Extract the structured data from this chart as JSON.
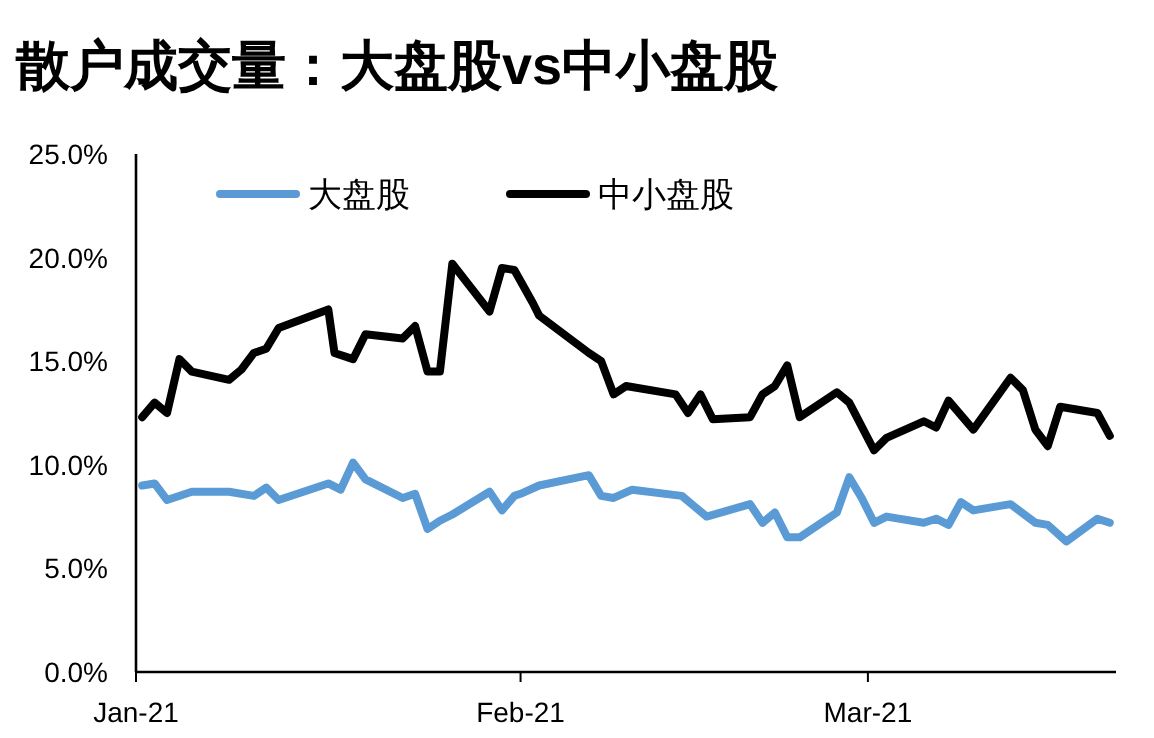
{
  "chart_data": {
    "type": "line",
    "title": "散户成交量：大盘股vs中小盘股",
    "xlim": [
      "2021-01-01",
      "2021-03-21"
    ],
    "xticks": [
      {
        "value": "2021-01-01",
        "label": "Jan-21"
      },
      {
        "value": "2021-02-01",
        "label": "Feb-21"
      },
      {
        "value": "2021-03-01",
        "label": "Mar-21"
      }
    ],
    "ylim": [
      0,
      25
    ],
    "yticks": [
      {
        "value": 0,
        "label": "0.0%"
      },
      {
        "value": 5,
        "label": "5.0%"
      },
      {
        "value": 10,
        "label": "10.0%"
      },
      {
        "value": 15,
        "label": "15.0%"
      },
      {
        "value": 20,
        "label": "20.0%"
      },
      {
        "value": 25,
        "label": "25.0%"
      }
    ],
    "grid": false,
    "legend": "top",
    "marker": "none",
    "line_style": "solid",
    "series": [
      {
        "name": "大盘股",
        "color": "#5b9bd5",
        "x": [
          "2021-01-01T12:00",
          "2021-01-02T12:00",
          "2021-01-03T12:00",
          "2021-01-05T12:00",
          "2021-01-08T12:00",
          "2021-01-10T12:00",
          "2021-01-11T12:00",
          "2021-01-12T12:00",
          "2021-01-16T12:00",
          "2021-01-17T12:00",
          "2021-01-18T12:00",
          "2021-01-19T12:00",
          "2021-01-22T12:00",
          "2021-01-23T12:00",
          "2021-01-24T12:00",
          "2021-01-25T12:00",
          "2021-01-26T12:00",
          "2021-01-29T12:00",
          "2021-01-30T12:00",
          "2021-01-31T12:00",
          "2021-02-01T00:00",
          "2021-02-02T12:00",
          "2021-02-06T12:00",
          "2021-02-07T12:00",
          "2021-02-08T12:00",
          "2021-02-10T00:00",
          "2021-02-14T00:00",
          "2021-02-15T00:00",
          "2021-02-16T00:00",
          "2021-02-19T12:00",
          "2021-02-20T12:00",
          "2021-02-21T12:00",
          "2021-02-22T12:00",
          "2021-02-23T12:00",
          "2021-02-26T12:00",
          "2021-02-27T12:00",
          "2021-02-28T12:00",
          "2021-03-01T12:00",
          "2021-03-02T12:00",
          "2021-03-05T12:00",
          "2021-03-06T12:00",
          "2021-03-07T12:00",
          "2021-03-08T12:00",
          "2021-03-09T12:00",
          "2021-03-12T12:00",
          "2021-03-14T12:00",
          "2021-03-15T12:00",
          "2021-03-17T00:00",
          "2021-03-19T12:00",
          "2021-03-20T12:00"
        ],
        "values": [
          9.0,
          9.1,
          8.3,
          8.7,
          8.7,
          8.5,
          8.9,
          8.3,
          9.1,
          8.8,
          10.1,
          9.3,
          8.4,
          8.6,
          6.9,
          7.3,
          7.6,
          8.7,
          7.8,
          8.5,
          8.6,
          9.0,
          9.5,
          8.5,
          8.4,
          8.8,
          8.5,
          8.0,
          7.5,
          8.1,
          7.2,
          7.7,
          6.5,
          6.5,
          7.7,
          9.4,
          8.4,
          7.2,
          7.5,
          7.2,
          7.4,
          7.1,
          8.2,
          7.8,
          8.1,
          7.2,
          7.1,
          6.3,
          7.4,
          7.2
        ]
      },
      {
        "name": "中小盘股",
        "color": "#000000",
        "x": [
          "2021-01-01T12:00",
          "2021-01-02T12:00",
          "2021-01-03T12:00",
          "2021-01-04T12:00",
          "2021-01-05T12:00",
          "2021-01-08T12:00",
          "2021-01-09T12:00",
          "2021-01-10T12:00",
          "2021-01-11T12:00",
          "2021-01-12T12:00",
          "2021-01-16T12:00",
          "2021-01-17T00:00",
          "2021-01-18T12:00",
          "2021-01-19T12:00",
          "2021-01-22T12:00",
          "2021-01-23T12:00",
          "2021-01-24T12:00",
          "2021-01-25T12:00",
          "2021-01-26T12:00",
          "2021-01-29T12:00",
          "2021-01-30T12:00",
          "2021-01-31T12:00",
          "2021-02-02T00:00",
          "2021-02-02T12:00",
          "2021-02-06T12:00",
          "2021-02-07T12:00",
          "2021-02-08T12:00",
          "2021-02-09T12:00",
          "2021-02-13T12:00",
          "2021-02-14T12:00",
          "2021-02-15T12:00",
          "2021-02-16T12:00",
          "2021-02-19T12:00",
          "2021-02-20T12:00",
          "2021-02-21T12:00",
          "2021-02-22T12:00",
          "2021-02-23T12:00",
          "2021-02-26T12:00",
          "2021-02-27T12:00",
          "2021-03-01T12:00",
          "2021-03-02T12:00",
          "2021-03-05T12:00",
          "2021-03-06T12:00",
          "2021-03-07T12:00",
          "2021-03-09T12:00",
          "2021-03-12T12:00",
          "2021-03-13T12:00",
          "2021-03-14T12:00",
          "2021-03-15T12:00",
          "2021-03-16T12:00",
          "2021-03-19T12:00",
          "2021-03-20T12:00"
        ],
        "values": [
          12.3,
          13.0,
          12.5,
          15.1,
          14.5,
          14.1,
          14.6,
          15.4,
          15.6,
          16.6,
          17.5,
          15.4,
          15.1,
          16.3,
          16.1,
          16.7,
          14.5,
          14.5,
          19.7,
          17.4,
          19.5,
          19.4,
          17.8,
          17.2,
          15.4,
          15.0,
          13.4,
          13.8,
          13.4,
          12.5,
          13.4,
          12.2,
          12.3,
          13.4,
          13.8,
          14.8,
          12.3,
          13.5,
          13.0,
          10.7,
          11.3,
          12.1,
          11.8,
          13.1,
          11.7,
          14.2,
          13.6,
          11.7,
          10.9,
          12.8,
          12.5,
          11.4
        ]
      }
    ]
  }
}
